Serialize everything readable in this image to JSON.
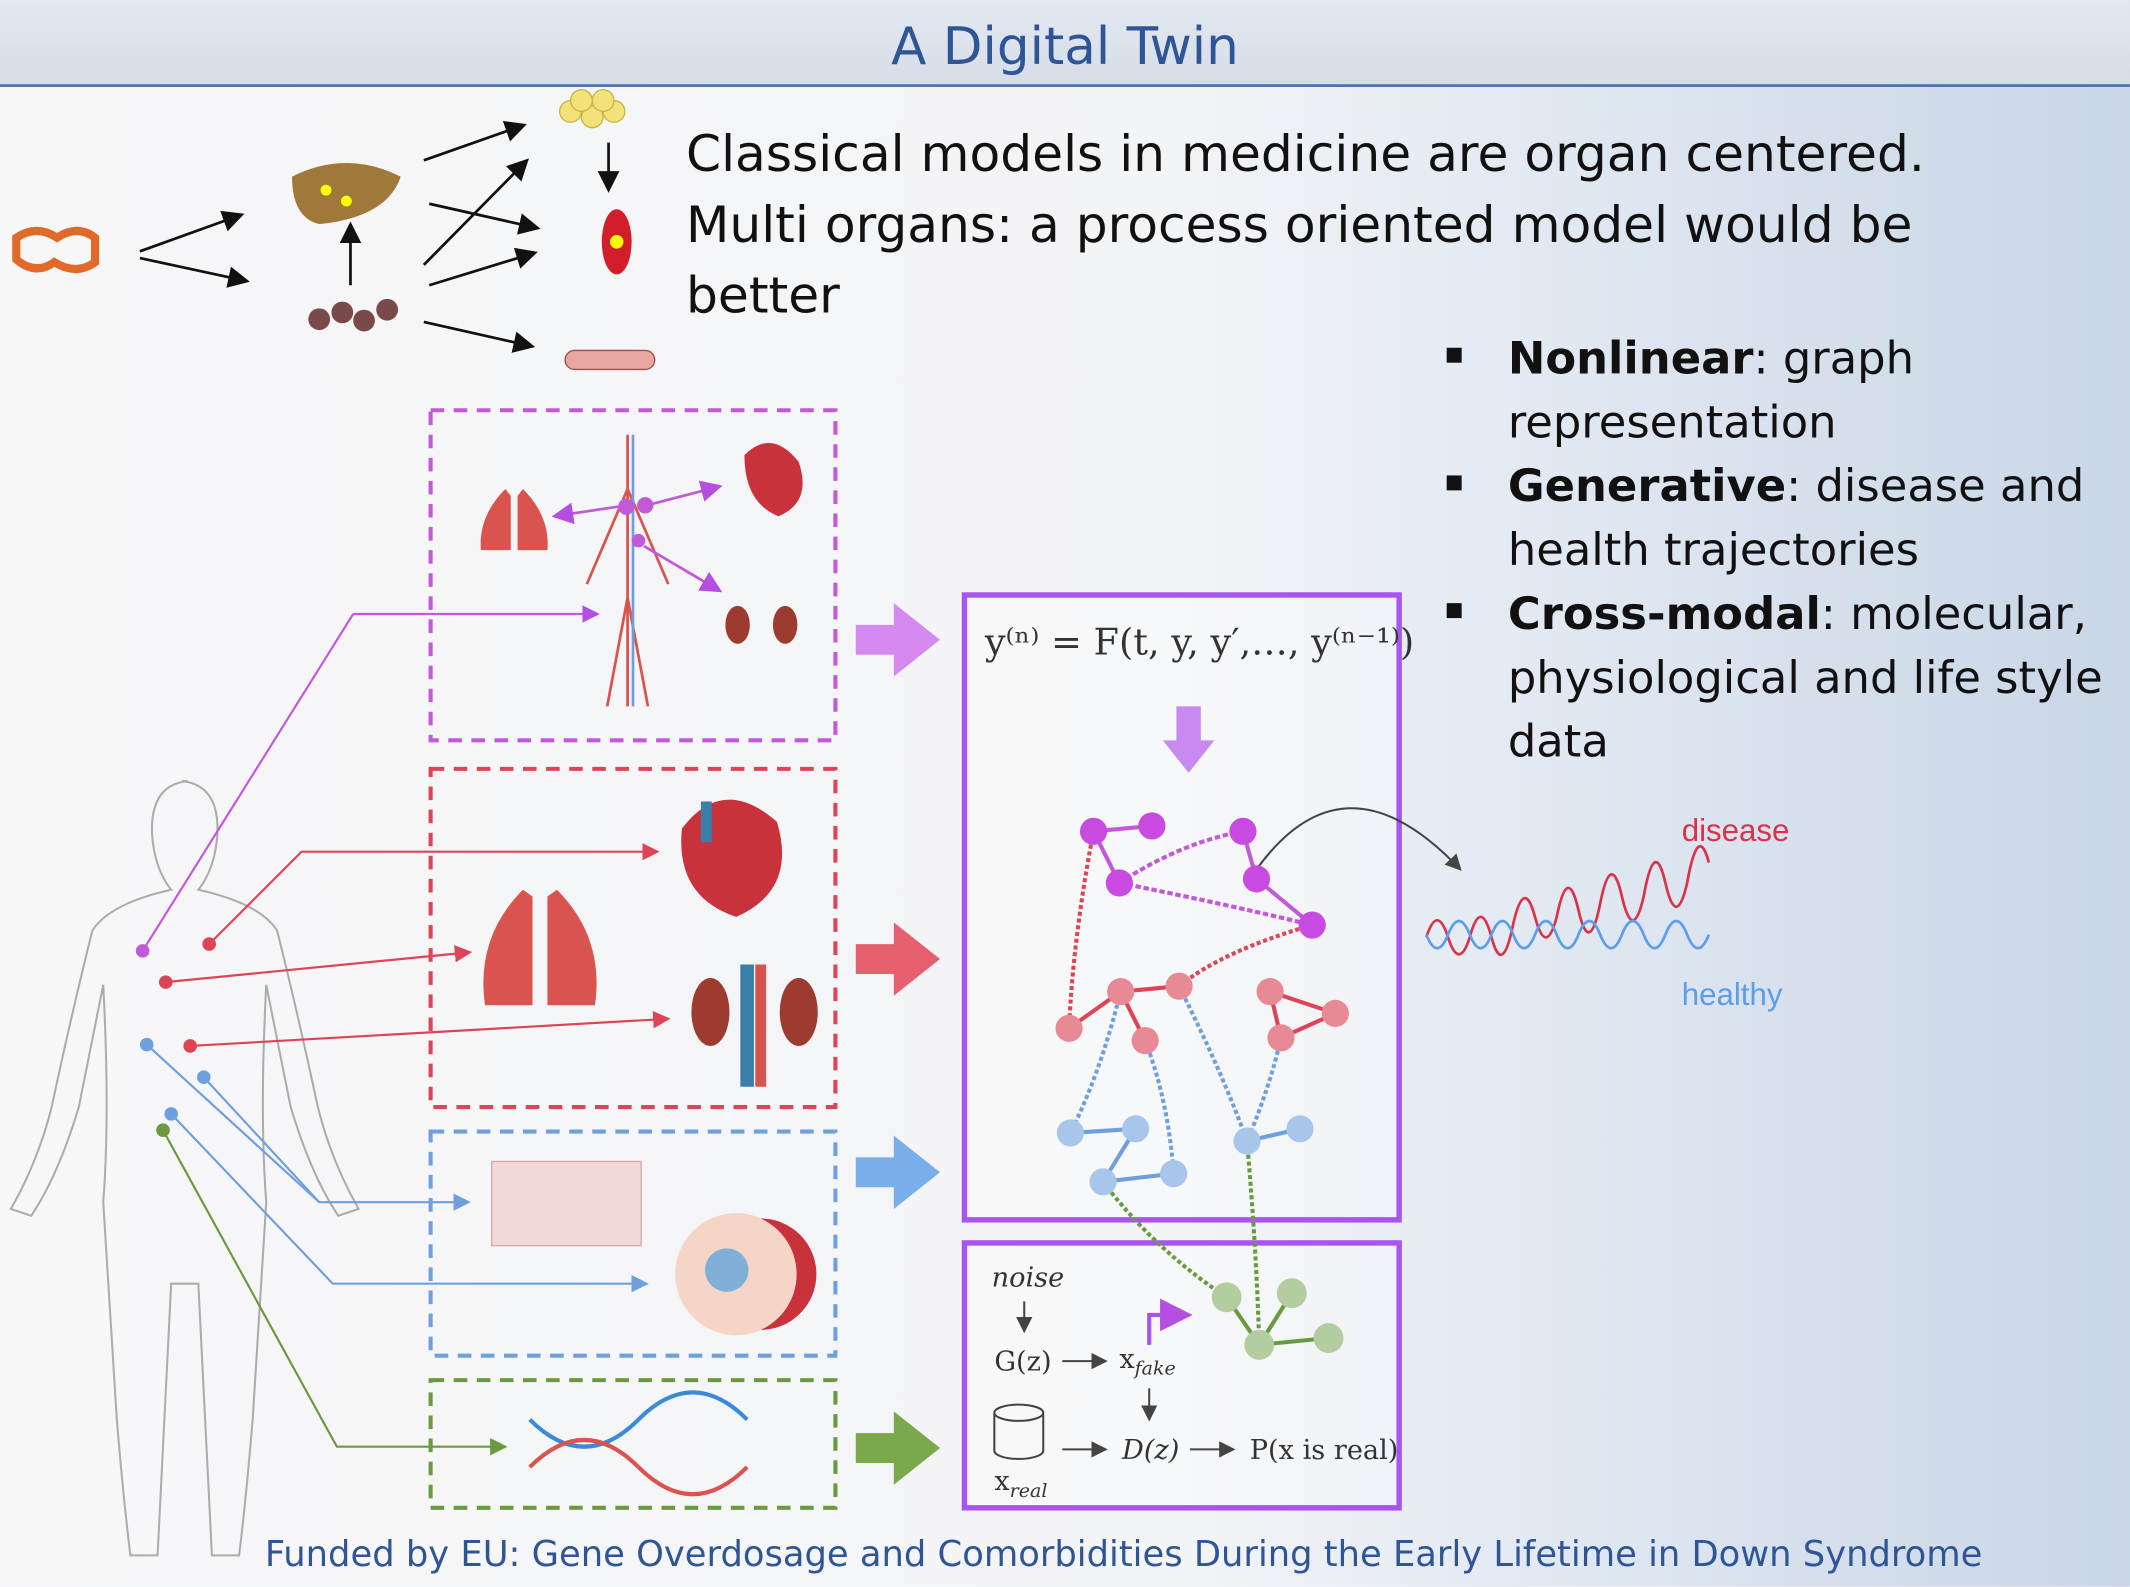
{
  "title": "A Digital Twin",
  "headline": "Classical models in medicine are organ centered. Multi organs: a process oriented model would be better",
  "bullets": [
    {
      "bold": "Nonlinear",
      "rest": ": graph representation"
    },
    {
      "bold": "Generative",
      "rest": ": disease and health trajectories"
    },
    {
      "bold": "Cross-modal",
      "rest": ": molecular, physiological and life style data"
    }
  ],
  "equation": "y⁽ⁿ⁾ = F(t, y, y′,…, y⁽ⁿ⁻¹⁾)",
  "gan": {
    "noise": "noise",
    "gz": "G(z)",
    "xfake": "x",
    "xfake_sub": "fake",
    "dz": "D(z)",
    "p": "P(x is real)",
    "xreal": "x",
    "xreal_sub": "real"
  },
  "trajectory_labels": {
    "disease": "disease",
    "healthy": "healthy"
  },
  "colors": {
    "title": "#2f5597",
    "purple": "#b44fe0",
    "red": "#dd4455",
    "blue": "#6fa0dd",
    "green": "#6a9a40",
    "disease": "#d9334a",
    "healthy": "#5d9ee8"
  },
  "footer": "Funded by EU: Gene Overdosage and Comorbidities During the Early Lifetime in Down Syndrome"
}
